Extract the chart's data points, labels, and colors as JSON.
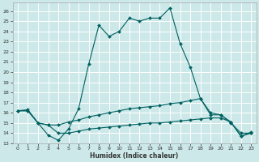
{
  "xlabel": "Humidex (Indice chaleur)",
  "bg_color": "#cce8e8",
  "grid_color": "#ffffff",
  "line_color": "#006060",
  "xlim": [
    -0.5,
    23.5
  ],
  "ylim": [
    13,
    26.8
  ],
  "yticks": [
    13,
    14,
    15,
    16,
    17,
    18,
    19,
    20,
    21,
    22,
    23,
    24,
    25,
    26
  ],
  "xticks": [
    0,
    1,
    2,
    3,
    4,
    5,
    6,
    7,
    8,
    9,
    10,
    11,
    12,
    13,
    14,
    15,
    16,
    17,
    18,
    19,
    20,
    21,
    22,
    23
  ],
  "series1_x": [
    0,
    1,
    2,
    3,
    4,
    5,
    6,
    7,
    8,
    9,
    10,
    11,
    12,
    13,
    14,
    15,
    16,
    17,
    18,
    19,
    20,
    21,
    22,
    23
  ],
  "series1_y": [
    16.2,
    16.3,
    15.0,
    13.8,
    13.3,
    14.4,
    16.4,
    20.8,
    24.6,
    23.5,
    24.0,
    25.3,
    25.0,
    25.3,
    25.3,
    26.3,
    22.8,
    20.5,
    17.4,
    16.0,
    15.8,
    15.1,
    13.7,
    14.1
  ],
  "series2_x": [
    0,
    1,
    2,
    3,
    4,
    5,
    6,
    7,
    8,
    9,
    10,
    11,
    12,
    13,
    14,
    15,
    16,
    17,
    18,
    19,
    20,
    21,
    22,
    23
  ],
  "series2_y": [
    16.2,
    16.2,
    15.0,
    14.8,
    14.8,
    15.1,
    15.3,
    15.6,
    15.8,
    16.0,
    16.2,
    16.4,
    16.5,
    16.6,
    16.7,
    16.9,
    17.0,
    17.2,
    17.4,
    15.8,
    15.8,
    15.0,
    14.0,
    14.0
  ],
  "series3_x": [
    0,
    1,
    2,
    3,
    4,
    5,
    6,
    7,
    8,
    9,
    10,
    11,
    12,
    13,
    14,
    15,
    16,
    17,
    18,
    19,
    20,
    21,
    22,
    23
  ],
  "series3_y": [
    16.2,
    16.2,
    15.0,
    14.8,
    14.0,
    14.0,
    14.2,
    14.4,
    14.5,
    14.6,
    14.7,
    14.8,
    14.9,
    15.0,
    15.0,
    15.1,
    15.2,
    15.3,
    15.4,
    15.5,
    15.5,
    15.1,
    13.7,
    14.0
  ],
  "tick_fontsize": 4.5,
  "xlabel_fontsize": 5.5,
  "marker_size": 2.0,
  "line_width": 0.8
}
